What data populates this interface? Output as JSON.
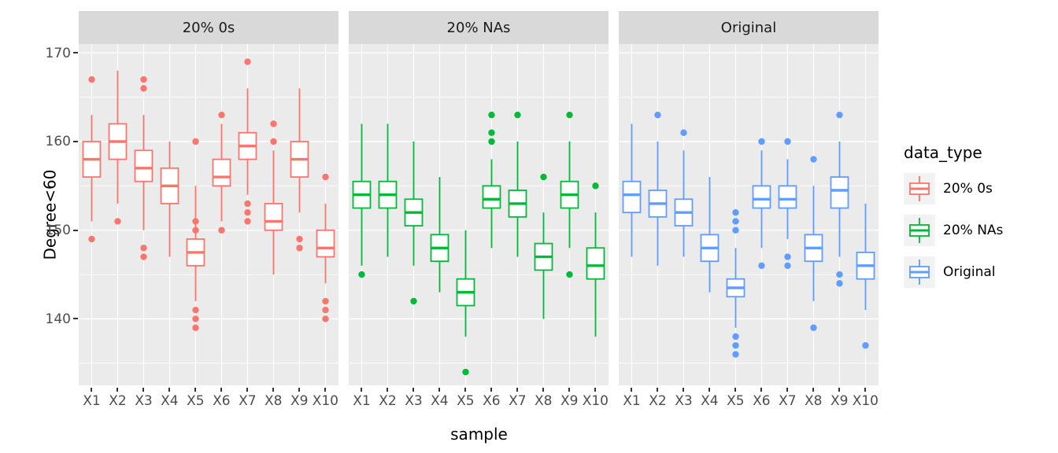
{
  "chart_data": {
    "type": "boxplot",
    "title": "",
    "xlabel": "sample",
    "ylabel": "Degree<60",
    "ylim": [
      132.5,
      171
    ],
    "yticks": [
      140,
      150,
      160,
      170
    ],
    "yticks_minor": [
      135,
      145,
      155,
      165
    ],
    "samples": [
      "X1",
      "X2",
      "X3",
      "X4",
      "X5",
      "X6",
      "X7",
      "X8",
      "X9",
      "X10"
    ],
    "panel_bg": "#EBEBEB",
    "strip_bg": "#D9D9D9",
    "legend": {
      "title": "data_type",
      "entries": [
        {
          "label": "20% 0s",
          "color": "#F8766D"
        },
        {
          "label": "20% NAs",
          "color": "#00BA38"
        },
        {
          "label": "Original",
          "color": "#619CFF"
        }
      ]
    },
    "facets": [
      {
        "label": "20% 0s",
        "color": "#F8766D",
        "boxes": [
          {
            "sample": "X1",
            "whislo": 151,
            "q1": 156,
            "med": 158,
            "q3": 160,
            "whishi": 163,
            "outliers": [
              167,
              149
            ]
          },
          {
            "sample": "X2",
            "whislo": 153,
            "q1": 158,
            "med": 160,
            "q3": 162,
            "whishi": 168,
            "outliers": [
              151
            ]
          },
          {
            "sample": "X3",
            "whislo": 150,
            "q1": 155.5,
            "med": 157,
            "q3": 159,
            "whishi": 163,
            "outliers": [
              167,
              166,
              148,
              147
            ]
          },
          {
            "sample": "X4",
            "whislo": 147,
            "q1": 153,
            "med": 155,
            "q3": 157,
            "whishi": 160,
            "outliers": []
          },
          {
            "sample": "X5",
            "whislo": 142,
            "q1": 146,
            "med": 147.5,
            "q3": 149,
            "whishi": 155,
            "outliers": [
              160,
              151,
              150,
              141,
              140,
              139
            ]
          },
          {
            "sample": "X6",
            "whislo": 151,
            "q1": 155,
            "med": 156,
            "q3": 158,
            "whishi": 162,
            "outliers": [
              163,
              150
            ]
          },
          {
            "sample": "X7",
            "whislo": 154,
            "q1": 158,
            "med": 159.5,
            "q3": 161,
            "whishi": 166,
            "outliers": [
              169,
              153,
              152,
              151
            ]
          },
          {
            "sample": "X8",
            "whislo": 145,
            "q1": 150,
            "med": 151,
            "q3": 153,
            "whishi": 159,
            "outliers": [
              162,
              160
            ]
          },
          {
            "sample": "X9",
            "whislo": 152,
            "q1": 156,
            "med": 158,
            "q3": 160,
            "whishi": 166,
            "outliers": [
              149,
              148
            ]
          },
          {
            "sample": "X10",
            "whislo": 144,
            "q1": 147,
            "med": 148,
            "q3": 150,
            "whishi": 153,
            "outliers": [
              156,
              142,
              141,
              140
            ]
          }
        ]
      },
      {
        "label": "20% NAs",
        "color": "#00BA38",
        "boxes": [
          {
            "sample": "X1",
            "whislo": 146,
            "q1": 152.5,
            "med": 154,
            "q3": 155.5,
            "whishi": 162,
            "outliers": [
              145
            ]
          },
          {
            "sample": "X2",
            "whislo": 147,
            "q1": 152.5,
            "med": 154,
            "q3": 155.5,
            "whishi": 162,
            "outliers": []
          },
          {
            "sample": "X3",
            "whislo": 146,
            "q1": 150.5,
            "med": 152,
            "q3": 153.5,
            "whishi": 160,
            "outliers": [
              142
            ]
          },
          {
            "sample": "X4",
            "whislo": 143,
            "q1": 146.5,
            "med": 148,
            "q3": 149.5,
            "whishi": 156,
            "outliers": []
          },
          {
            "sample": "X5",
            "whislo": 138,
            "q1": 141.5,
            "med": 143,
            "q3": 144.5,
            "whishi": 150,
            "outliers": [
              134
            ]
          },
          {
            "sample": "X6",
            "whislo": 148,
            "q1": 152.5,
            "med": 153.5,
            "q3": 155,
            "whishi": 158,
            "outliers": [
              163,
              161,
              160
            ]
          },
          {
            "sample": "X7",
            "whislo": 147,
            "q1": 151.5,
            "med": 153,
            "q3": 154.5,
            "whishi": 160,
            "outliers": [
              163
            ]
          },
          {
            "sample": "X8",
            "whislo": 140,
            "q1": 145.5,
            "med": 147,
            "q3": 148.5,
            "whishi": 152,
            "outliers": [
              156
            ]
          },
          {
            "sample": "X9",
            "whislo": 148,
            "q1": 152.5,
            "med": 154,
            "q3": 155.5,
            "whishi": 160,
            "outliers": [
              163,
              145
            ]
          },
          {
            "sample": "X10",
            "whislo": 138,
            "q1": 144.5,
            "med": 146,
            "q3": 148,
            "whishi": 152,
            "outliers": [
              155
            ]
          }
        ]
      },
      {
        "label": "Original",
        "color": "#619CFF",
        "boxes": [
          {
            "sample": "X1",
            "whislo": 147,
            "q1": 152,
            "med": 154,
            "q3": 155.5,
            "whishi": 162,
            "outliers": []
          },
          {
            "sample": "X2",
            "whislo": 146,
            "q1": 151.5,
            "med": 153,
            "q3": 154.5,
            "whishi": 160,
            "outliers": [
              163
            ]
          },
          {
            "sample": "X3",
            "whislo": 147,
            "q1": 150.5,
            "med": 152,
            "q3": 153.5,
            "whishi": 159,
            "outliers": [
              161
            ]
          },
          {
            "sample": "X4",
            "whislo": 143,
            "q1": 146.5,
            "med": 148,
            "q3": 149.5,
            "whishi": 156,
            "outliers": []
          },
          {
            "sample": "X5",
            "whislo": 139,
            "q1": 142.5,
            "med": 143.5,
            "q3": 144.5,
            "whishi": 148,
            "outliers": [
              152,
              151,
              150,
              138,
              137,
              136
            ]
          },
          {
            "sample": "X6",
            "whislo": 148,
            "q1": 152.5,
            "med": 153.5,
            "q3": 155,
            "whishi": 159,
            "outliers": [
              160,
              146
            ]
          },
          {
            "sample": "X7",
            "whislo": 149,
            "q1": 152.5,
            "med": 153.5,
            "q3": 155,
            "whishi": 158,
            "outliers": [
              160,
              147,
              146
            ]
          },
          {
            "sample": "X8",
            "whislo": 142,
            "q1": 146.5,
            "med": 148,
            "q3": 149.5,
            "whishi": 155,
            "outliers": [
              158,
              139
            ]
          },
          {
            "sample": "X9",
            "whislo": 147,
            "q1": 152.5,
            "med": 154.5,
            "q3": 156,
            "whishi": 160,
            "outliers": [
              163,
              145,
              144
            ]
          },
          {
            "sample": "X10",
            "whislo": 141,
            "q1": 144.5,
            "med": 146,
            "q3": 147.5,
            "whishi": 153,
            "outliers": [
              137
            ]
          }
        ]
      }
    ]
  }
}
